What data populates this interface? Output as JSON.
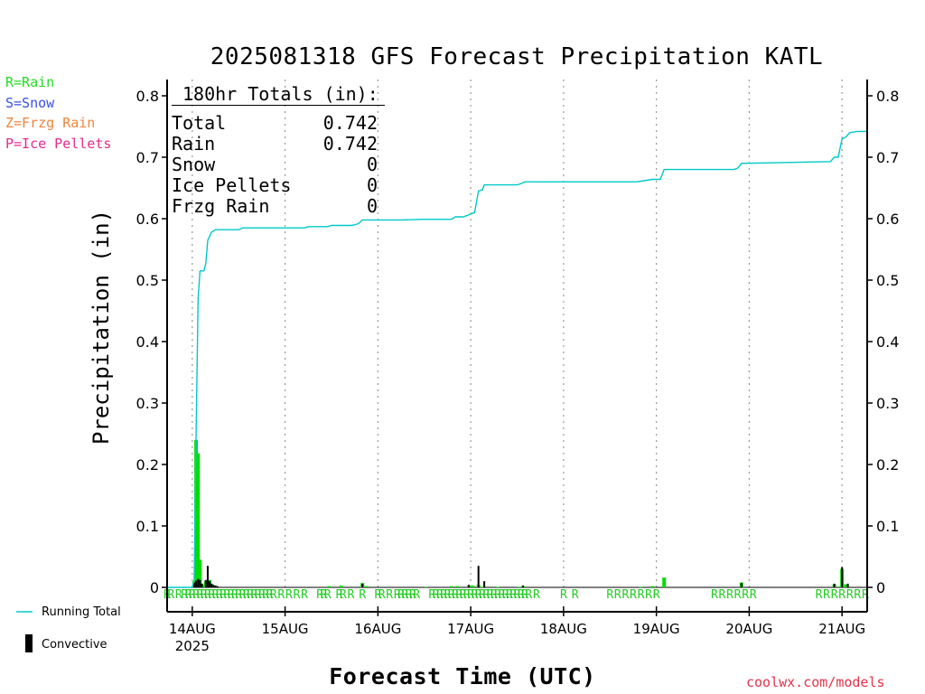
{
  "title": "2025081318 GFS Forecast Precipitation KATL",
  "credit": "coolwx.com/models",
  "type_legend": [
    {
      "label": "R=Rain",
      "color": "#22dd22"
    },
    {
      "label": "S=Snow",
      "color": "#3a4fe8"
    },
    {
      "label": "Z=Frzg Rain",
      "color": "#f0843c"
    },
    {
      "label": "P=Ice Pellets",
      "color": "#e52a8f"
    }
  ],
  "bottom_legend": {
    "running_total": "Running Total",
    "convective": "Convective"
  },
  "totals": {
    "header": "180hr Totals (in):",
    "rows": [
      {
        "label": "Total",
        "value": "0.742"
      },
      {
        "label": "Rain",
        "value": "0.742"
      },
      {
        "label": "Snow",
        "value": "0"
      },
      {
        "label": "Ice Pellets",
        "value": "0"
      },
      {
        "label": "Frzg Rain",
        "value": "0"
      }
    ]
  },
  "chart_data": {
    "type": "bar",
    "title": "2025081318 GFS Forecast Precipitation KATL",
    "xlabel": "Forecast Time (UTC)",
    "ylabel": "Precipitation (in)",
    "ylim": [
      0,
      0.82
    ],
    "xlim_hours": [
      -0.5,
      180.5
    ],
    "y_ticks": [
      0,
      0.1,
      0.2,
      0.3,
      0.4,
      0.5,
      0.6,
      0.7,
      0.8
    ],
    "y_tick_labels": [
      "0",
      "0.1",
      "0.2",
      "0.3",
      "0.4",
      "0.5",
      "0.6",
      "0.7",
      "0.8"
    ],
    "x_ticks": [
      {
        "hour": 6,
        "label": "14AUG",
        "sublabel": "2025"
      },
      {
        "hour": 30,
        "label": "15AUG"
      },
      {
        "hour": 54,
        "label": "16AUG"
      },
      {
        "hour": 78,
        "label": "17AUG"
      },
      {
        "hour": 102,
        "label": "18AUG"
      },
      {
        "hour": 126,
        "label": "19AUG"
      },
      {
        "hour": 150,
        "label": "20AUG"
      },
      {
        "hour": 174,
        "label": "21AUG"
      }
    ],
    "colors": {
      "rain": "#00dd00",
      "convective": "#000000",
      "running_total": "#00c8c8",
      "ptype_label": "#22cc22",
      "grid": "#999999"
    },
    "precip_bars": [
      [
        6.5,
        0.01
      ],
      [
        7,
        0.24
      ],
      [
        7.5,
        0.218
      ],
      [
        8,
        0.045
      ],
      [
        8.5,
        0.005
      ],
      [
        9.5,
        0.01
      ],
      [
        10.5,
        0.012
      ],
      [
        11,
        0.005
      ],
      [
        41.5,
        0.002
      ],
      [
        44.5,
        0.003
      ],
      [
        50,
        0.007
      ],
      [
        51,
        0.002
      ],
      [
        66.5,
        0.001
      ],
      [
        73,
        0.002
      ],
      [
        74.5,
        0.002
      ],
      [
        77.5,
        0.003
      ],
      [
        78.5,
        0.003
      ],
      [
        80,
        0.004
      ],
      [
        81,
        0.001
      ],
      [
        85,
        0.001
      ],
      [
        90.5,
        0.001
      ],
      [
        91.5,
        0.002
      ],
      [
        122,
        0.001
      ],
      [
        125,
        0.002
      ],
      [
        128,
        0.016
      ],
      [
        148,
        0.008
      ],
      [
        172,
        0.005
      ],
      [
        174,
        0.03
      ],
      [
        175,
        0.005
      ]
    ],
    "convective_bars": [
      [
        6.5,
        0.008
      ],
      [
        7,
        0.011
      ],
      [
        7.5,
        0.014
      ],
      [
        8,
        0.012
      ],
      [
        8.5,
        0.006
      ],
      [
        9.5,
        0.012
      ],
      [
        10,
        0.035
      ],
      [
        10.5,
        0.01
      ],
      [
        11,
        0.006
      ],
      [
        11.5,
        0.004
      ],
      [
        12,
        0.003
      ],
      [
        12.5,
        0.002
      ],
      [
        50,
        0.006
      ],
      [
        77.5,
        0.004
      ],
      [
        80,
        0.035
      ],
      [
        81.5,
        0.01
      ],
      [
        91.5,
        0.003
      ],
      [
        148,
        0.007
      ],
      [
        172,
        0.006
      ],
      [
        174,
        0.033
      ],
      [
        175.5,
        0.006
      ]
    ],
    "running_total": [
      [
        -0.5,
        0
      ],
      [
        6,
        0
      ],
      [
        6.5,
        0.012
      ],
      [
        7,
        0.25
      ],
      [
        7.5,
        0.47
      ],
      [
        8,
        0.515
      ],
      [
        9,
        0.515
      ],
      [
        9.5,
        0.527
      ],
      [
        10,
        0.565
      ],
      [
        11,
        0.578
      ],
      [
        12,
        0.582
      ],
      [
        18,
        0.582
      ],
      [
        19,
        0.585
      ],
      [
        25,
        0.585
      ],
      [
        35,
        0.585
      ],
      [
        36,
        0.587
      ],
      [
        41,
        0.587
      ],
      [
        42,
        0.589
      ],
      [
        47,
        0.589
      ],
      [
        48,
        0.59
      ],
      [
        49,
        0.592
      ],
      [
        50,
        0.598
      ],
      [
        60,
        0.598
      ],
      [
        66,
        0.599
      ],
      [
        73,
        0.599
      ],
      [
        74,
        0.603
      ],
      [
        76,
        0.603
      ],
      [
        77,
        0.605
      ],
      [
        79,
        0.61
      ],
      [
        80,
        0.645
      ],
      [
        81,
        0.647
      ],
      [
        81.5,
        0.655
      ],
      [
        90,
        0.655
      ],
      [
        91,
        0.657
      ],
      [
        92,
        0.66
      ],
      [
        121,
        0.66
      ],
      [
        122,
        0.661
      ],
      [
        125,
        0.664
      ],
      [
        127,
        0.664
      ],
      [
        128,
        0.68
      ],
      [
        146,
        0.68
      ],
      [
        147,
        0.682
      ],
      [
        148,
        0.69
      ],
      [
        171,
        0.693
      ],
      [
        172,
        0.7
      ],
      [
        173,
        0.7
      ],
      [
        174,
        0.73
      ],
      [
        175,
        0.733
      ],
      [
        176,
        0.74
      ],
      [
        178,
        0.742
      ],
      [
        180.5,
        0.742
      ]
    ],
    "ptype_labels": [
      "R@-0.5",
      "R@0.5",
      "R@2.5",
      "R@4",
      "R@5",
      "R@6",
      "R@7",
      "R@8",
      "R@9",
      "R@10",
      "R@11",
      "R@12",
      "R@13",
      "R@14",
      "R@15",
      "R@16",
      "R@17",
      "R@18",
      "R@19",
      "R@20",
      "R@21",
      "R@22",
      "R@23",
      "R@24",
      "R@25",
      "R@26",
      "R@27",
      "R@29",
      "R@31",
      "R@33",
      "R@35",
      "R@39",
      "R@40",
      "R@41",
      "R@44",
      "R@45",
      "R@47",
      "R@50",
      "R@54",
      "R@55",
      "R@57",
      "R@59",
      "R@60",
      "R@61",
      "R@62",
      "R@63",
      "R@64",
      "R@68",
      "R@69",
      "R@70",
      "R@71",
      "R@72",
      "R@73",
      "R@74",
      "R@75",
      "R@76",
      "R@77",
      "R@78",
      "R@79",
      "R@80",
      "R@81",
      "R@82",
      "R@83",
      "R@84",
      "R@85",
      "R@86",
      "R@87",
      "R@88",
      "R@89",
      "R@90",
      "R@91",
      "R@92",
      "R@93",
      "R@95",
      "R@102",
      "R@105",
      "R@114",
      "R@116",
      "R@118",
      "R@120",
      "R@122",
      "R@124",
      "R@126",
      "R@141",
      "R@143",
      "R@145",
      "R@147",
      "R@149",
      "R@151",
      "R@168",
      "R@170",
      "R@172",
      "R@174",
      "R@176",
      "R@178",
      "R@180"
    ]
  }
}
